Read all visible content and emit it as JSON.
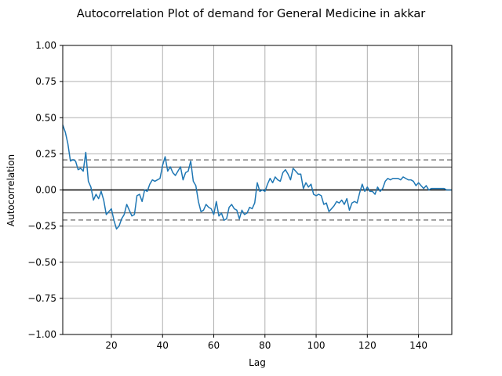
{
  "chart_data": {
    "type": "line",
    "title": "Autocorrelation Plot of demand for General Medicine in akkar",
    "xlabel": "Lag",
    "ylabel": "Autocorrelation",
    "xlim": [
      1,
      153
    ],
    "ylim": [
      -1.0,
      1.0
    ],
    "xticks": [
      20,
      40,
      60,
      80,
      100,
      120,
      140
    ],
    "xtick_labels": [
      "20",
      "40",
      "60",
      "80",
      "100",
      "120",
      "140"
    ],
    "yticks": [
      -1.0,
      -0.75,
      -0.5,
      -0.25,
      0.0,
      0.25,
      0.5,
      0.75,
      1.0
    ],
    "ytick_labels": [
      "−1.00",
      "−0.75",
      "−0.50",
      "−0.25",
      "0.00",
      "0.25",
      "0.50",
      "0.75",
      "1.00"
    ],
    "grid": true,
    "zero_line": 0.0,
    "confidence_lines": [
      {
        "value": 0.158,
        "style": "solid",
        "color": "#808080"
      },
      {
        "value": -0.158,
        "style": "solid",
        "color": "#808080"
      },
      {
        "value": 0.208,
        "style": "dashed",
        "color": "#808080"
      },
      {
        "value": -0.208,
        "style": "dashed",
        "color": "#808080"
      }
    ],
    "series_color": "#1f77b4",
    "x": [
      1,
      2,
      3,
      4,
      5,
      6,
      7,
      8,
      9,
      10,
      11,
      12,
      13,
      14,
      15,
      16,
      17,
      18,
      19,
      20,
      21,
      22,
      23,
      24,
      25,
      26,
      27,
      28,
      29,
      30,
      31,
      32,
      33,
      34,
      35,
      36,
      37,
      38,
      39,
      40,
      41,
      42,
      43,
      44,
      45,
      46,
      47,
      48,
      49,
      50,
      51,
      52,
      53,
      54,
      55,
      56,
      57,
      58,
      59,
      60,
      61,
      62,
      63,
      64,
      65,
      66,
      67,
      68,
      69,
      70,
      71,
      72,
      73,
      74,
      75,
      76,
      77,
      78,
      79,
      80,
      81,
      82,
      83,
      84,
      85,
      86,
      87,
      88,
      89,
      90,
      91,
      92,
      93,
      94,
      95,
      96,
      97,
      98,
      99,
      100,
      101,
      102,
      103,
      104,
      105,
      106,
      107,
      108,
      109,
      110,
      111,
      112,
      113,
      114,
      115,
      116,
      117,
      118,
      119,
      120,
      121,
      122,
      123,
      124,
      125,
      126,
      127,
      128,
      129,
      130,
      131,
      132,
      133,
      134,
      135,
      136,
      137,
      138,
      139,
      140,
      141,
      142,
      143,
      144,
      145,
      146,
      147,
      148,
      149,
      150,
      151,
      152,
      153
    ],
    "y": [
      0.45,
      0.4,
      0.32,
      0.2,
      0.21,
      0.2,
      0.14,
      0.15,
      0.13,
      0.26,
      0.06,
      0.02,
      -0.07,
      -0.03,
      -0.06,
      -0.01,
      -0.07,
      -0.17,
      -0.15,
      -0.13,
      -0.21,
      -0.27,
      -0.25,
      -0.2,
      -0.17,
      -0.1,
      -0.14,
      -0.18,
      -0.17,
      -0.04,
      -0.03,
      -0.08,
      0.0,
      -0.01,
      0.04,
      0.07,
      0.06,
      0.07,
      0.08,
      0.17,
      0.23,
      0.13,
      0.16,
      0.12,
      0.1,
      0.13,
      0.16,
      0.07,
      0.12,
      0.13,
      0.2,
      0.06,
      0.03,
      -0.08,
      -0.15,
      -0.14,
      -0.1,
      -0.12,
      -0.13,
      -0.17,
      -0.08,
      -0.18,
      -0.16,
      -0.21,
      -0.2,
      -0.12,
      -0.1,
      -0.13,
      -0.14,
      -0.2,
      -0.14,
      -0.17,
      -0.16,
      -0.12,
      -0.13,
      -0.09,
      0.05,
      -0.01,
      0.0,
      -0.01,
      0.04,
      0.08,
      0.05,
      0.09,
      0.07,
      0.06,
      0.12,
      0.14,
      0.11,
      0.07,
      0.15,
      0.13,
      0.11,
      0.11,
      0.01,
      0.05,
      0.02,
      0.04,
      -0.03,
      -0.04,
      -0.03,
      -0.04,
      -0.1,
      -0.09,
      -0.15,
      -0.13,
      -0.11,
      -0.08,
      -0.09,
      -0.07,
      -0.1,
      -0.06,
      -0.14,
      -0.09,
      -0.08,
      -0.09,
      -0.02,
      0.04,
      -0.01,
      0.02,
      -0.01,
      -0.01,
      -0.03,
      0.02,
      -0.01,
      0.01,
      0.06,
      0.08,
      0.07,
      0.08,
      0.08,
      0.08,
      0.07,
      0.09,
      0.08,
      0.07,
      0.07,
      0.06,
      0.03,
      0.05,
      0.03,
      0.01,
      0.03,
      0.0,
      0.01,
      0.01,
      0.01,
      0.01,
      0.01,
      0.01,
      0.0,
      0.0,
      0.0
    ]
  }
}
